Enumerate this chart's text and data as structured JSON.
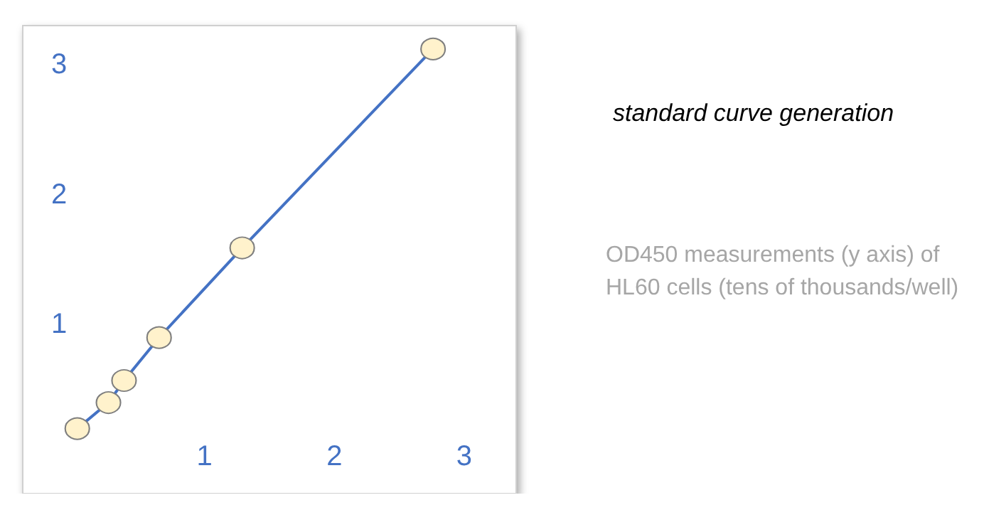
{
  "chart_data": {
    "type": "line",
    "title": "standard curve generation",
    "annotations": [
      "OD450 measurements (y axis) of HL60 cells (tens of thousands/well)"
    ],
    "x": [
      0.02,
      0.26,
      0.38,
      0.65,
      1.29,
      2.76
    ],
    "series": [
      {
        "color": "#4472c4",
        "values": [
          0.2,
          0.4,
          0.57,
          0.9,
          1.59,
          3.12
        ]
      }
    ],
    "xlim": [
      -0.4,
      3.4
    ],
    "ylim": [
      -0.3,
      3.3
    ],
    "xticks": [
      1,
      2,
      3
    ],
    "yticks": [
      1,
      2,
      3
    ],
    "grid": false,
    "marker": "circle",
    "line_style": "solid"
  }
}
